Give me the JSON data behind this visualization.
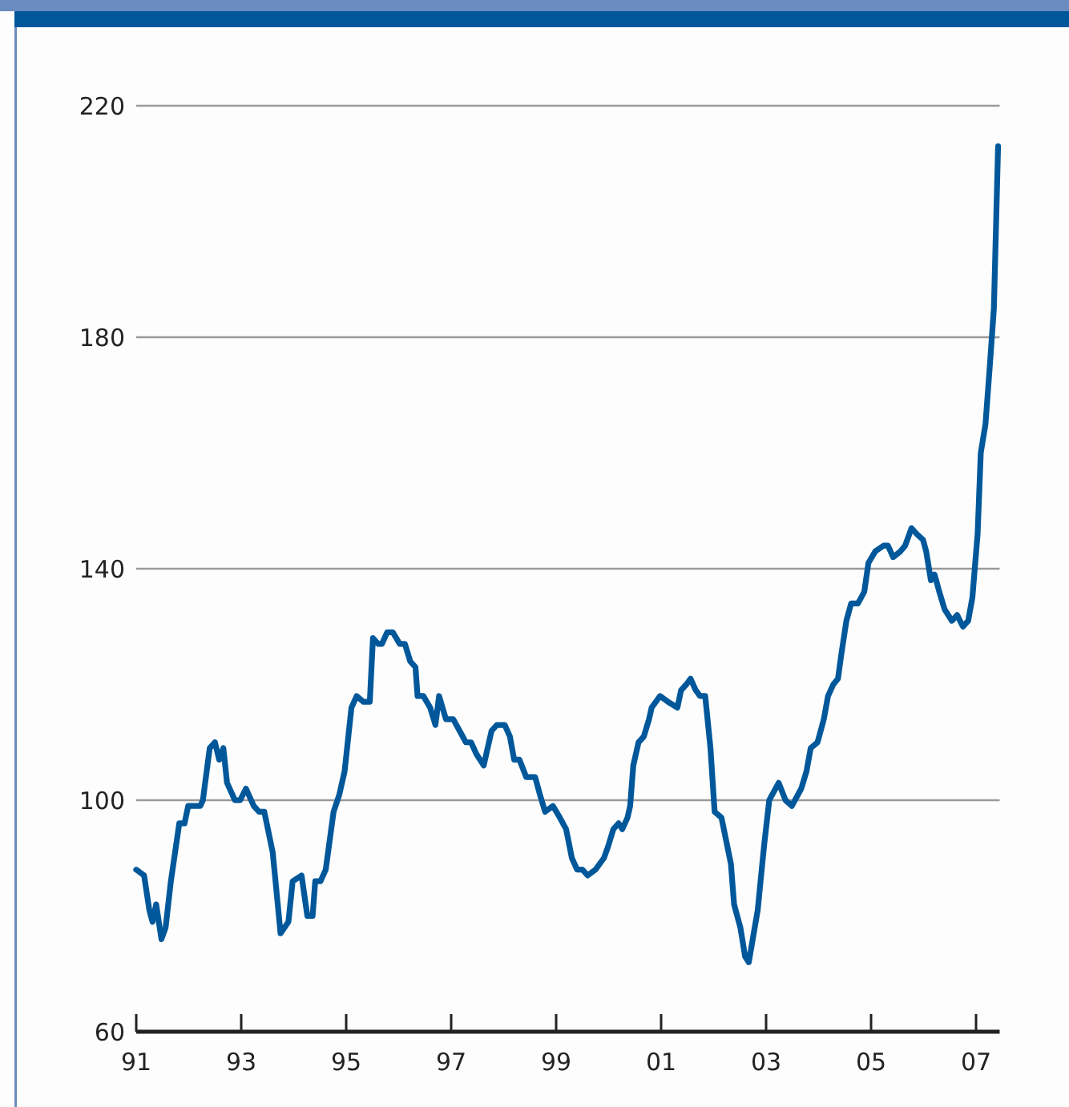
{
  "chart_data": {
    "type": "line",
    "xlim": [
      1991,
      2007.45
    ],
    "ylim": [
      60,
      220
    ],
    "xticks": [
      {
        "value": 1991,
        "label": "91"
      },
      {
        "value": 1993,
        "label": "93"
      },
      {
        "value": 1995,
        "label": "95"
      },
      {
        "value": 1997,
        "label": "97"
      },
      {
        "value": 1999,
        "label": "99"
      },
      {
        "value": 2001,
        "label": "01"
      },
      {
        "value": 2003,
        "label": "03"
      },
      {
        "value": 2005,
        "label": "05"
      },
      {
        "value": 2007,
        "label": "07"
      }
    ],
    "yticks": [
      60,
      100,
      140,
      180,
      220
    ],
    "grid": "y",
    "marker": "none",
    "line_style": "solid",
    "series": [
      {
        "color": "#00589b",
        "x": [
          1991.0,
          1991.15,
          1991.25,
          1991.31,
          1991.38,
          1991.48,
          1991.56,
          1991.66,
          1991.82,
          1991.92,
          1991.99,
          1992.22,
          1992.27,
          1992.4,
          1992.5,
          1992.58,
          1992.66,
          1992.73,
          1992.88,
          1992.98,
          1993.09,
          1993.24,
          1993.34,
          1993.44,
          1993.6,
          1993.75,
          1993.9,
          1993.98,
          1994.15,
          1994.26,
          1994.36,
          1994.41,
          1994.51,
          1994.61,
          1994.76,
          1994.87,
          1994.97,
          1995.1,
          1995.2,
          1995.33,
          1995.45,
          1995.51,
          1995.61,
          1995.68,
          1995.78,
          1995.89,
          1996.02,
          1996.12,
          1996.22,
          1996.32,
          1996.36,
          1996.47,
          1996.6,
          1996.7,
          1996.77,
          1996.9,
          1997.04,
          1997.16,
          1997.28,
          1997.38,
          1997.48,
          1997.62,
          1997.77,
          1997.87,
          1998.02,
          1998.12,
          1998.2,
          1998.3,
          1998.43,
          1998.6,
          1998.69,
          1998.79,
          1998.94,
          1999.07,
          1999.19,
          1999.3,
          1999.4,
          1999.5,
          1999.6,
          1999.75,
          1999.91,
          1999.99,
          2000.09,
          2000.19,
          2000.26,
          2000.36,
          2000.41,
          2000.47,
          2000.57,
          2000.67,
          2000.77,
          2000.82,
          2000.98,
          2001.13,
          2001.31,
          2001.38,
          2001.48,
          2001.56,
          2001.66,
          2001.74,
          2001.84,
          2001.94,
          2002.02,
          2002.15,
          2002.33,
          2002.39,
          2002.51,
          2002.6,
          2002.67,
          2002.84,
          2002.96,
          2003.06,
          2003.24,
          2003.37,
          2003.49,
          2003.67,
          2003.77,
          2003.85,
          2003.98,
          2004.1,
          2004.18,
          2004.28,
          2004.37,
          2004.43,
          2004.53,
          2004.62,
          2004.75,
          2004.87,
          2004.95,
          2005.08,
          2005.24,
          2005.32,
          2005.42,
          2005.56,
          2005.65,
          2005.77,
          2005.87,
          2005.99,
          2006.05,
          2006.14,
          2006.21,
          2006.3,
          2006.4,
          2006.54,
          2006.64,
          2006.75,
          2006.85,
          2006.93,
          2007.03,
          2007.09,
          2007.18,
          2007.27,
          2007.34,
          2007.42
        ],
        "values": [
          88,
          87,
          81,
          79,
          82,
          76,
          78,
          86,
          96,
          96,
          99,
          99,
          100,
          109,
          110,
          107,
          109,
          103,
          100,
          100,
          102,
          99,
          98,
          98,
          91,
          77,
          79,
          86,
          87,
          80,
          80,
          86,
          86,
          88,
          98,
          101,
          105,
          116,
          118,
          117,
          117,
          128,
          127,
          127,
          129,
          129,
          127,
          127,
          124,
          123,
          118,
          118,
          116,
          113,
          118,
          114,
          114,
          112,
          110,
          110,
          108,
          106,
          112,
          113,
          113,
          111,
          107,
          107,
          104,
          104,
          101,
          98,
          99,
          97,
          95,
          90,
          88,
          88,
          87,
          88,
          90,
          92,
          95,
          96,
          95,
          97,
          99,
          106,
          110,
          111,
          114,
          116,
          118,
          117,
          116,
          119,
          120,
          121,
          119,
          118,
          118,
          109,
          98,
          97,
          89,
          82,
          78,
          73,
          72,
          81,
          92,
          100,
          103,
          100,
          99,
          102,
          105,
          109,
          110,
          114,
          118,
          120,
          121,
          125,
          131,
          134,
          134,
          136,
          141,
          143,
          144,
          144,
          142,
          143,
          144,
          147,
          146,
          145,
          143,
          138,
          139,
          136,
          133,
          131,
          132,
          130,
          131,
          135,
          146,
          160,
          165,
          176,
          185,
          213
        ]
      }
    ]
  }
}
